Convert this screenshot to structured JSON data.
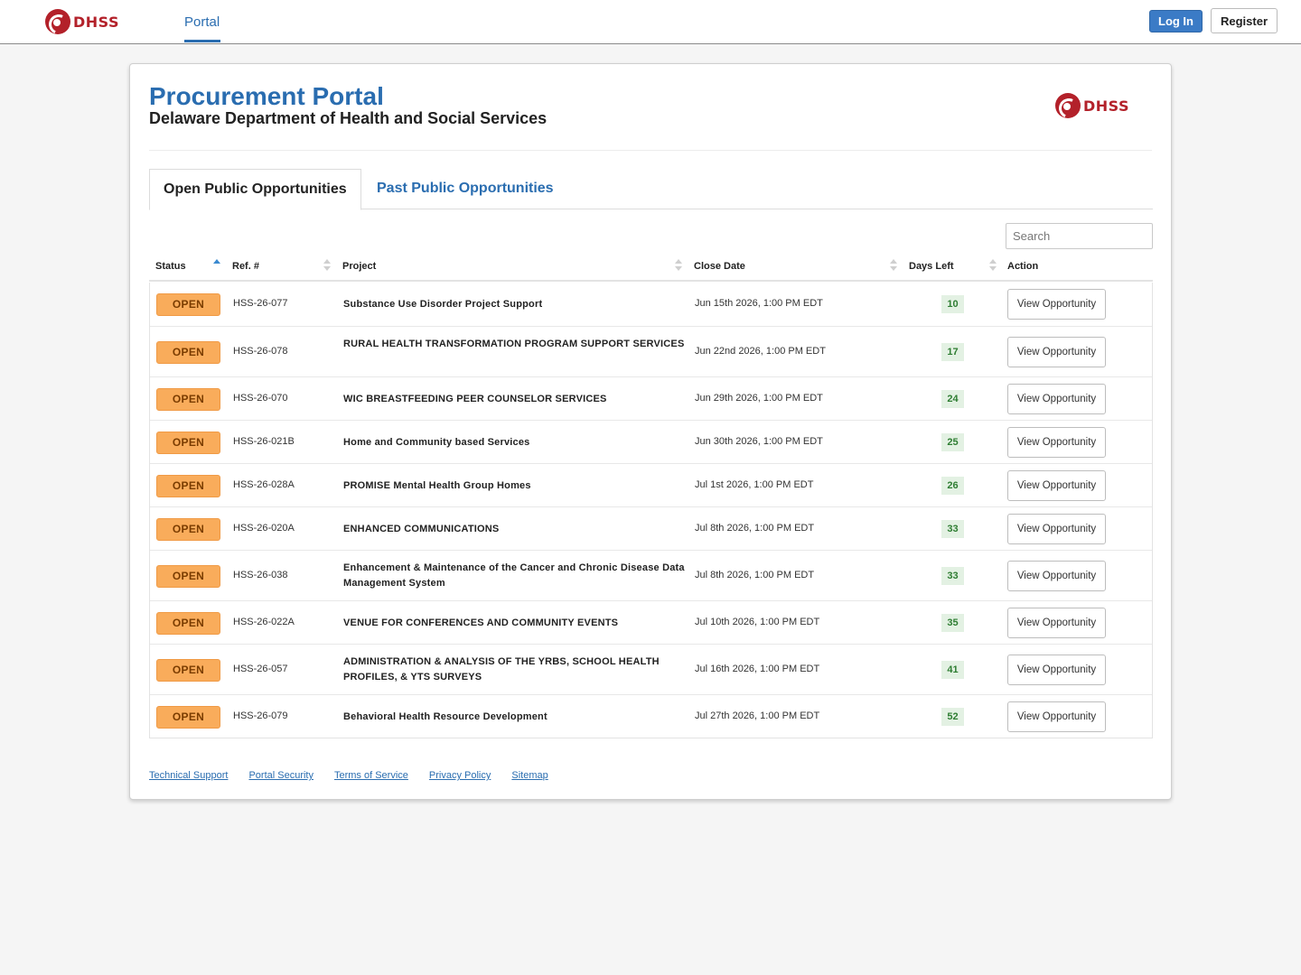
{
  "topnav": {
    "logo_text": "DHSS",
    "portal_tab": "Portal",
    "login_label": "Log In",
    "register_label": "Register"
  },
  "page": {
    "title": "Procurement Portal",
    "subtitle": "Delaware Department of Health and Social Services",
    "logo_text": "DHSS"
  },
  "tabs": {
    "open_label": "Open Public Opportunities",
    "past_label": "Past Public Opportunities"
  },
  "search": {
    "placeholder": "Search"
  },
  "table": {
    "headers": {
      "status": "Status",
      "ref": "Ref. #",
      "project": "Project",
      "close_date": "Close Date",
      "days_left": "Days Left",
      "action": "Action"
    },
    "rows": [
      {
        "status": "OPEN",
        "ref": "HSS-26-077",
        "project": "Substance Use Disorder Project Support",
        "close_date": "Jun 15th 2026, 1:00 PM EDT",
        "days_left": "10",
        "action": "View Opportunity"
      },
      {
        "status": "OPEN",
        "ref": "HSS-26-078",
        "project": "RURAL HEALTH TRANSFORMATION PROGRAM SUPPORT SERVICES",
        "close_date": "Jun 22nd 2026, 1:00 PM EDT",
        "days_left": "17",
        "action": "View Opportunity"
      },
      {
        "status": "OPEN",
        "ref": "HSS-26-070",
        "project": "WIC BREASTFEEDING PEER COUNSELOR SERVICES",
        "close_date": "Jun 29th 2026, 1:00 PM EDT",
        "days_left": "24",
        "action": "View Opportunity"
      },
      {
        "status": "OPEN",
        "ref": "HSS-26-021B",
        "project": "Home and Community based Services",
        "close_date": "Jun 30th 2026, 1:00 PM EDT",
        "days_left": "25",
        "action": "View Opportunity"
      },
      {
        "status": "OPEN",
        "ref": "HSS-26-028A",
        "project": "PROMISE Mental Health Group Homes",
        "close_date": "Jul 1st 2026, 1:00 PM EDT",
        "days_left": "26",
        "action": "View Opportunity"
      },
      {
        "status": "OPEN",
        "ref": "HSS-26-020A",
        "project": "ENHANCED COMMUNICATIONS",
        "close_date": "Jul 8th 2026, 1:00 PM EDT",
        "days_left": "33",
        "action": "View Opportunity"
      },
      {
        "status": "OPEN",
        "ref": "HSS-26-038",
        "project": "Enhancement & Maintenance of the Cancer and Chronic Disease Data Management System",
        "close_date": "Jul 8th 2026, 1:00 PM EDT",
        "days_left": "33",
        "action": "View Opportunity"
      },
      {
        "status": "OPEN",
        "ref": "HSS-26-022A",
        "project": "VENUE FOR CONFERENCES AND COMMUNITY EVENTS",
        "close_date": "Jul 10th 2026, 1:00 PM EDT",
        "days_left": "35",
        "action": "View Opportunity"
      },
      {
        "status": "OPEN",
        "ref": "HSS-26-057",
        "project": "ADMINISTRATION & ANALYSIS OF THE YRBS, SCHOOL HEALTH PROFILES, & YTS SURVEYS",
        "close_date": "Jul 16th 2026, 1:00 PM EDT",
        "days_left": "41",
        "action": "View Opportunity"
      },
      {
        "status": "OPEN",
        "ref": "HSS-26-079",
        "project": "Behavioral Health Resource Development",
        "close_date": "Jul 27th 2026, 1:00 PM EDT",
        "days_left": "52",
        "action": "View Opportunity"
      }
    ]
  },
  "footer": {
    "links": [
      "Technical Support",
      "Portal Security",
      "Terms of Service",
      "Privacy Policy",
      "Sitemap"
    ]
  },
  "colors": {
    "brand_blue": "#2a6db0",
    "brand_red": "#b3212a",
    "open_badge": "#f9ac5b",
    "days_left_bg": "#e3f1e3"
  }
}
